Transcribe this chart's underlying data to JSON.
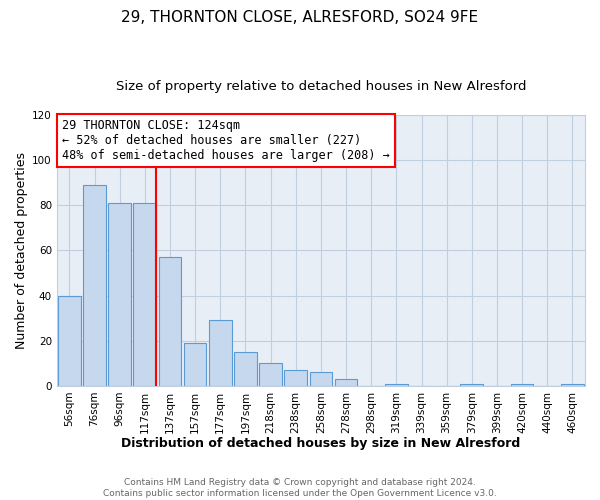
{
  "title": "29, THORNTON CLOSE, ALRESFORD, SO24 9FE",
  "subtitle": "Size of property relative to detached houses in New Alresford",
  "xlabel": "Distribution of detached houses by size in New Alresford",
  "ylabel": "Number of detached properties",
  "bar_labels": [
    "56sqm",
    "76sqm",
    "96sqm",
    "117sqm",
    "137sqm",
    "157sqm",
    "177sqm",
    "197sqm",
    "218sqm",
    "238sqm",
    "258sqm",
    "278sqm",
    "298sqm",
    "319sqm",
    "339sqm",
    "359sqm",
    "379sqm",
    "399sqm",
    "420sqm",
    "440sqm",
    "460sqm"
  ],
  "bar_heights": [
    40,
    89,
    81,
    81,
    57,
    19,
    29,
    15,
    10,
    7,
    6,
    3,
    0,
    1,
    0,
    0,
    1,
    0,
    1,
    0,
    1
  ],
  "bar_color": "#c5d8ed",
  "bar_edge_color": "#5b9bd5",
  "ylim": [
    0,
    120
  ],
  "yticks": [
    0,
    20,
    40,
    60,
    80,
    100,
    120
  ],
  "redline_x": 3.45,
  "annotation_title": "29 THORNTON CLOSE: 124sqm",
  "annotation_line1": "← 52% of detached houses are smaller (227)",
  "annotation_line2": "48% of semi-detached houses are larger (208) →",
  "footer_line1": "Contains HM Land Registry data © Crown copyright and database right 2024.",
  "footer_line2": "Contains public sector information licensed under the Open Government Licence v3.0.",
  "figure_bg_color": "#ffffff",
  "plot_bg_color": "#e8eef6",
  "grid_color": "#c0cfe0",
  "title_fontsize": 11,
  "subtitle_fontsize": 9.5,
  "axis_label_fontsize": 9,
  "tick_fontsize": 7.5,
  "annotation_fontsize": 8.5,
  "footer_fontsize": 6.5
}
